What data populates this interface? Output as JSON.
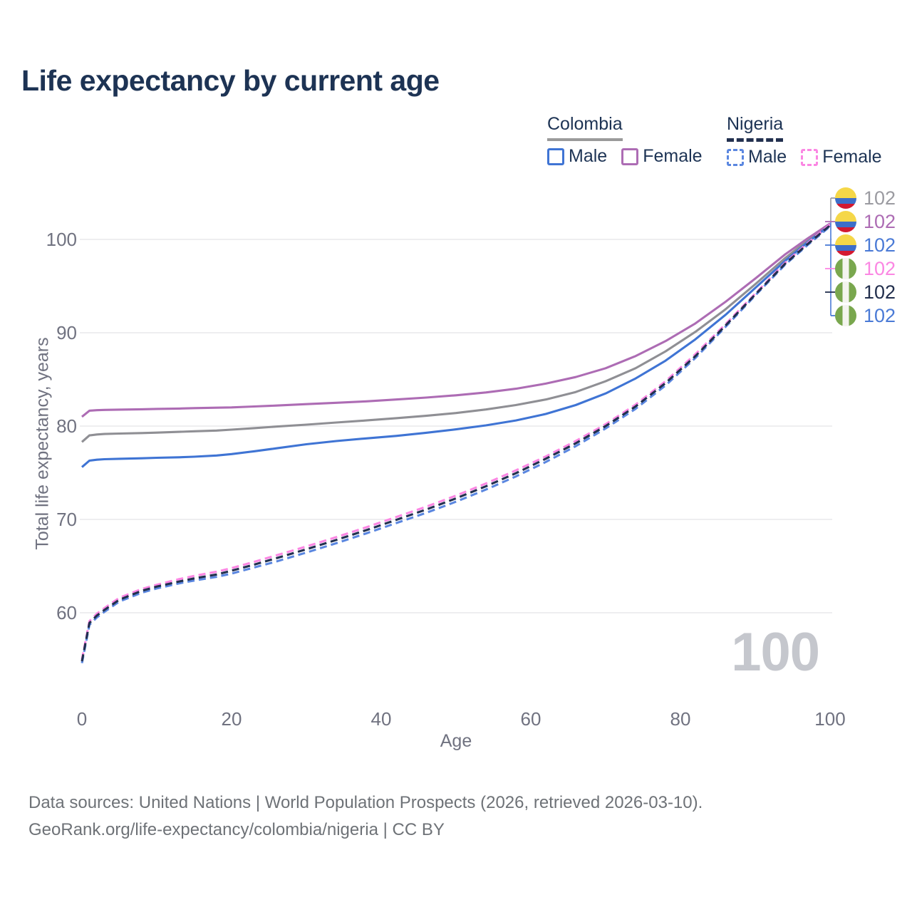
{
  "title": "Life expectancy by current age",
  "watermark": "100",
  "footer": {
    "line1": "Data sources: United Nations | World Population Prospects (2026, retrieved 2026-03-10).",
    "line2": "GeoRank.org/life-expectancy/colombia/nigeria | CC BY"
  },
  "legend": {
    "groups": [
      {
        "country": "Colombia",
        "line_style": "solid",
        "underline_color": "#9a9a9a",
        "items": [
          {
            "label": "Male",
            "color": "#3f74d4"
          },
          {
            "label": "Female",
            "color": "#ad6cb4"
          }
        ]
      },
      {
        "country": "Nigeria",
        "line_style": "dashed",
        "underline_color": "#22304f",
        "items": [
          {
            "label": "Male",
            "color": "#5b87e0"
          },
          {
            "label": "Female",
            "color": "#fb87e3"
          }
        ]
      }
    ]
  },
  "chart_data": {
    "type": "line",
    "title": "Life expectancy by current age",
    "xlabel": "Age",
    "ylabel": "Total life expectancy, years",
    "xlim": [
      0,
      100
    ],
    "ylim": [
      54,
      103
    ],
    "x_ticks": [
      0,
      20,
      40,
      60,
      80,
      100
    ],
    "y_ticks": [
      60,
      70,
      80,
      90,
      100
    ],
    "grid": "horizontal",
    "legend_position": "top-right",
    "x": [
      0,
      1,
      2,
      3,
      5,
      8,
      10,
      13,
      15,
      18,
      20,
      23,
      26,
      30,
      34,
      38,
      42,
      46,
      50,
      54,
      58,
      62,
      66,
      70,
      74,
      78,
      82,
      86,
      90,
      94,
      97,
      100
    ],
    "series": [
      {
        "name": "Colombia Total",
        "country": "Colombia",
        "sex": "total",
        "color": "#8f8f94",
        "dash": "solid",
        "values": [
          78.3,
          79.0,
          79.1,
          79.15,
          79.2,
          79.25,
          79.3,
          79.38,
          79.44,
          79.52,
          79.62,
          79.78,
          79.95,
          80.15,
          80.38,
          80.6,
          80.85,
          81.1,
          81.4,
          81.78,
          82.25,
          82.85,
          83.65,
          84.8,
          86.2,
          88.0,
          90.1,
          92.5,
          95.2,
          98.0,
          99.9,
          101.6
        ]
      },
      {
        "name": "Colombia Female",
        "country": "Colombia",
        "sex": "female",
        "color": "#ad6cb4",
        "dash": "solid",
        "values": [
          81.0,
          81.65,
          81.7,
          81.73,
          81.76,
          81.8,
          81.84,
          81.88,
          81.92,
          81.97,
          82.0,
          82.1,
          82.2,
          82.35,
          82.5,
          82.65,
          82.85,
          83.05,
          83.3,
          83.6,
          84.0,
          84.55,
          85.25,
          86.2,
          87.5,
          89.1,
          91.0,
          93.3,
          95.8,
          98.4,
          100.1,
          101.7
        ]
      },
      {
        "name": "Colombia Male",
        "country": "Colombia",
        "sex": "male",
        "color": "#3f74d4",
        "dash": "solid",
        "values": [
          75.6,
          76.3,
          76.4,
          76.45,
          76.5,
          76.55,
          76.6,
          76.66,
          76.72,
          76.85,
          77.0,
          77.3,
          77.62,
          78.05,
          78.4,
          78.68,
          78.95,
          79.28,
          79.65,
          80.08,
          80.6,
          81.3,
          82.25,
          83.5,
          85.1,
          87.0,
          89.3,
          91.9,
          94.8,
          97.7,
          99.7,
          101.5
        ]
      },
      {
        "name": "Nigeria Male",
        "country": "Nigeria",
        "sex": "male",
        "color": "#5b87e0",
        "dash": "dashed",
        "values": [
          54.6,
          58.7,
          59.5,
          60.1,
          61.2,
          62.15,
          62.6,
          63.15,
          63.45,
          63.85,
          64.2,
          64.85,
          65.5,
          66.45,
          67.45,
          68.5,
          69.6,
          70.7,
          71.9,
          73.2,
          74.6,
          76.15,
          77.85,
          79.75,
          81.85,
          84.35,
          87.3,
          90.6,
          94.0,
          97.3,
          99.4,
          101.4
        ]
      },
      {
        "name": "Nigeria Female",
        "country": "Nigeria",
        "sex": "female",
        "color": "#fb87e3",
        "dash": "dashed",
        "values": [
          55.0,
          59.1,
          59.9,
          60.5,
          61.6,
          62.55,
          63.0,
          63.6,
          63.95,
          64.4,
          64.78,
          65.45,
          66.15,
          67.1,
          68.1,
          69.15,
          70.25,
          71.35,
          72.55,
          73.85,
          75.25,
          76.75,
          78.4,
          80.2,
          82.3,
          84.8,
          87.7,
          90.9,
          94.2,
          97.5,
          99.6,
          101.6
        ]
      },
      {
        "name": "Nigeria Total",
        "country": "Nigeria",
        "sex": "total",
        "color": "#22304f",
        "dash": "dashed",
        "values": [
          54.8,
          58.9,
          59.7,
          60.3,
          61.4,
          62.35,
          62.8,
          63.35,
          63.68,
          64.1,
          64.5,
          65.15,
          65.85,
          66.8,
          67.8,
          68.85,
          69.95,
          71.05,
          72.25,
          73.55,
          74.95,
          76.5,
          78.15,
          80.0,
          82.1,
          84.6,
          87.5,
          90.75,
          94.1,
          97.4,
          99.5,
          101.5
        ]
      }
    ],
    "end_labels": [
      {
        "flag": "colombia",
        "value": "102",
        "color": "#9b9ba1"
      },
      {
        "flag": "colombia",
        "value": "102",
        "color": "#ad6cb4"
      },
      {
        "flag": "colombia",
        "value": "102",
        "color": "#4a7ad6"
      },
      {
        "flag": "nigeria",
        "value": "102",
        "color": "#fb87e3"
      },
      {
        "flag": "nigeria",
        "value": "102",
        "color": "#222f4d"
      },
      {
        "flag": "nigeria",
        "value": "102",
        "color": "#4a7ad6"
      }
    ],
    "flag_colors": {
      "colombia": {
        "top": "#f5d748",
        "middle": "#3d6ec9",
        "bottom": "#d31931"
      },
      "nigeria": {
        "left": "#79a74e",
        "center": "#f4f4ef",
        "right": "#79a74e"
      }
    },
    "grid_color": "#e9e9ec",
    "axis_text_color": "#707280"
  }
}
